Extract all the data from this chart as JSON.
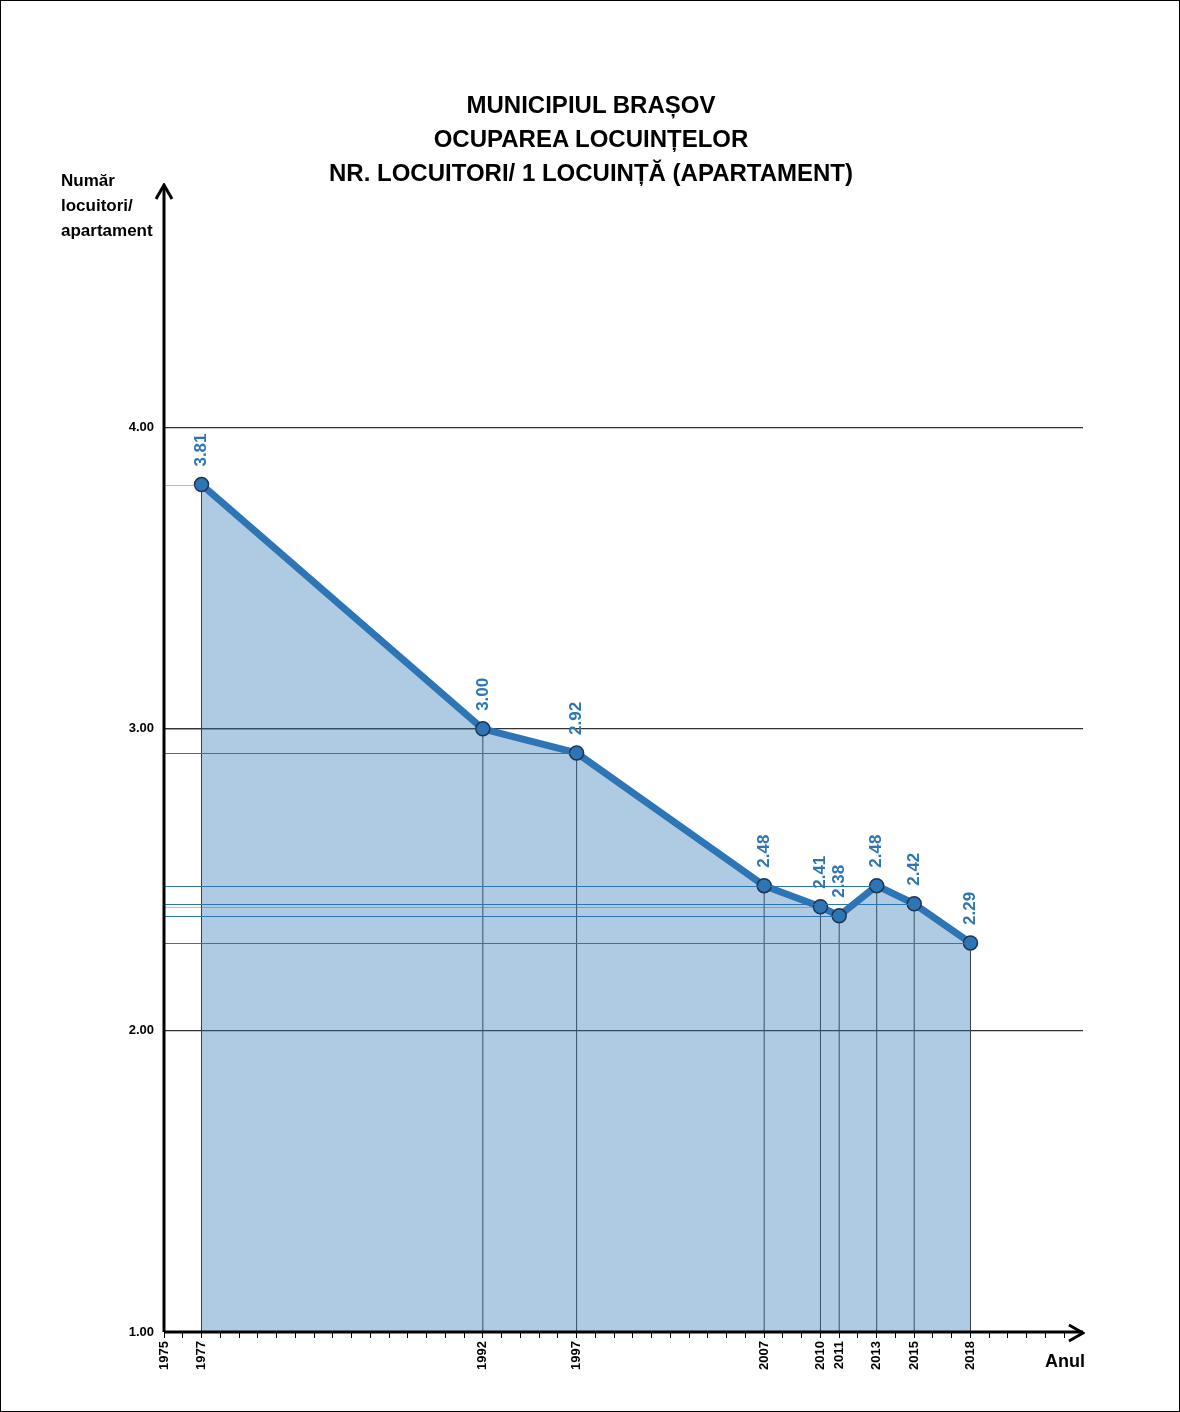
{
  "chart_data": {
    "type": "area",
    "title": "MUNICIPIUL BRAȘOV\nOCUPAREA LOCUINȚELOR\nNR. LOCUITORI/ 1 LOCUINȚĂ (APARTAMENT)",
    "xlabel": "Anul",
    "ylabel": "Număr locuitori/ apartament",
    "x": [
      1977,
      1992,
      1997,
      2007,
      2010,
      2011,
      2013,
      2015,
      2018
    ],
    "series": [
      {
        "color": "#2e75b6",
        "values": [
          3.81,
          3.0,
          2.92,
          2.48,
          2.41,
          2.38,
          2.48,
          2.42,
          2.29
        ],
        "value_labels": [
          "3.81",
          "3.00",
          "2.92",
          "2.48",
          "2.41",
          "2.38",
          "2.48",
          "2.42",
          "2.29"
        ]
      }
    ],
    "ref_lines": [
      {
        "axis": "y",
        "value": 2.92,
        "color": "#2e75b6"
      },
      {
        "axis": "y",
        "value": 2.48,
        "color": "#2e75b6"
      },
      {
        "axis": "y",
        "value": 2.42,
        "color": "#2e75b6"
      },
      {
        "axis": "y",
        "value": 2.38,
        "color": "#2e75b6"
      },
      {
        "axis": "y",
        "value": 2.29,
        "color": "#2e75b6"
      }
    ],
    "xlim": [
      1975,
      2024
    ],
    "xticks": [
      1975,
      {
        "value": 1976,
        "label": null
      },
      1977,
      {
        "value": 1978,
        "label": null
      },
      {
        "value": 1979,
        "label": null
      },
      {
        "value": 1980,
        "label": null
      },
      {
        "value": 1981,
        "label": null
      },
      {
        "value": 1982,
        "label": null
      },
      {
        "value": 1983,
        "label": null
      },
      {
        "value": 1984,
        "label": null
      },
      {
        "value": 1985,
        "label": null
      },
      {
        "value": 1986,
        "label": null
      },
      {
        "value": 1987,
        "label": null
      },
      {
        "value": 1988,
        "label": null
      },
      {
        "value": 1989,
        "label": null
      },
      {
        "value": 1990,
        "label": null
      },
      {
        "value": 1991,
        "label": null
      },
      1992,
      {
        "value": 1993,
        "label": null
      },
      {
        "value": 1994,
        "label": null
      },
      {
        "value": 1995,
        "label": null
      },
      {
        "value": 1996,
        "label": null
      },
      1997,
      {
        "value": 1998,
        "label": null
      },
      {
        "value": 1999,
        "label": null
      },
      {
        "value": 2000,
        "label": null
      },
      {
        "value": 2001,
        "label": null
      },
      {
        "value": 2002,
        "label": null
      },
      {
        "value": 2003,
        "label": null
      },
      {
        "value": 2004,
        "label": null
      },
      {
        "value": 2005,
        "label": null
      },
      {
        "value": 2006,
        "label": null
      },
      2007,
      {
        "value": 2008,
        "label": null
      },
      {
        "value": 2009,
        "label": null
      },
      2010,
      2011,
      {
        "value": 2012,
        "label": null
      },
      2013,
      {
        "value": 2014,
        "label": null
      },
      2015,
      {
        "value": 2016,
        "label": null
      },
      {
        "value": 2017,
        "label": null
      },
      2018,
      {
        "value": 2019,
        "label": null
      },
      {
        "value": 2020,
        "label": null
      },
      {
        "value": 2021,
        "label": null
      },
      {
        "value": 2022,
        "label": null
      },
      {
        "value": 2023,
        "label": null
      }
    ],
    "ylim": [
      1,
      4.8
    ],
    "yticks": [
      {
        "value": 1,
        "label": "1.00"
      },
      {
        "value": 2,
        "label": "2.00"
      },
      {
        "value": 3,
        "label": "3.00"
      },
      {
        "value": 4,
        "label": "4.00"
      }
    ],
    "grid": "y",
    "marker": "circle",
    "line_style": "solid",
    "data_labels": true,
    "legend": false
  }
}
